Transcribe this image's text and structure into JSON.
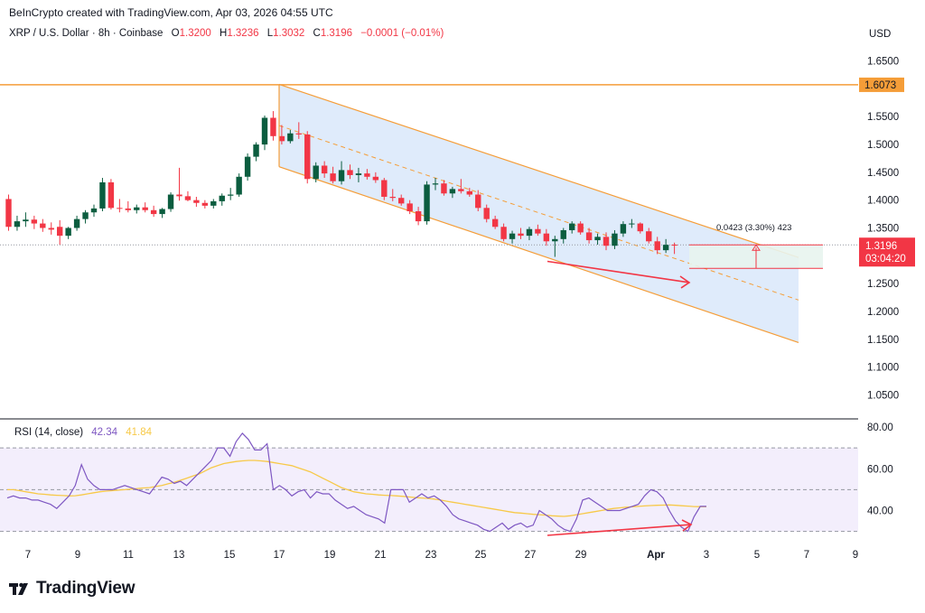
{
  "header": {
    "credit": "BeInCrypto created with TradingView.com, Apr 03, 2026 04:55 UTC"
  },
  "symbol": {
    "title": "XRP / U.S. Dollar · 8h · Coinbase",
    "open_label": "O",
    "open": "1.3200",
    "high_label": "H",
    "high": "1.3236",
    "low_label": "L",
    "low": "1.3032",
    "close_label": "C",
    "close": "1.3196",
    "change": "−0.0001 (−0.01%)"
  },
  "currency": "USD",
  "price_axis": {
    "ticks": [
      "1.6500",
      "1.6073",
      "1.5500",
      "1.5000",
      "1.4500",
      "1.4000",
      "1.3500",
      "1.3196",
      "03:04:20",
      "1.2500",
      "1.2000",
      "1.1500",
      "1.1000",
      "1.0500"
    ],
    "resistance_label": "1.6073",
    "last_price_label": "1.3196",
    "countdown_label": "03:04:20"
  },
  "measure": {
    "label": "0.0423 (3.30%) 423"
  },
  "rsi": {
    "title": "RSI (14, close)",
    "value": "42.34",
    "ma_value": "41.84",
    "axis_ticks": [
      "80.00",
      "60.00",
      "40.00"
    ],
    "upper_band": 70,
    "lower_band": 30,
    "mid_band": 50
  },
  "time_axis": {
    "ticks": [
      "7",
      "9",
      "11",
      "13",
      "15",
      "17",
      "19",
      "21",
      "23",
      "25",
      "27",
      "29",
      "Apr",
      "3",
      "5",
      "7",
      "9"
    ]
  },
  "brand": {
    "name": "TradingView"
  },
  "colors": {
    "bull": "#089981",
    "bull_dark": "#0b5d3f",
    "bear": "#f23645",
    "channel_fill": "#dbe9fb",
    "channel_line": "#f59d38",
    "resistance": "#f59d38",
    "rsi_line": "#7e57c2",
    "rsi_ma": "#f7c948",
    "rsi_band": "#f3eefc",
    "arrow": "#f23645"
  },
  "chart_data": [
    {
      "type": "candlestick",
      "title": "XRP / U.S. Dollar · 8h · Coinbase",
      "ylabel": "USD",
      "ylim": [
        1.02,
        1.68
      ],
      "x_tick_labels": [
        "7",
        "9",
        "11",
        "13",
        "15",
        "17",
        "19",
        "21",
        "23",
        "25",
        "27",
        "29",
        "Apr",
        "3",
        "5",
        "7",
        "9"
      ],
      "resistance_level": 1.6073,
      "last_price": 1.3196,
      "candles": [
        [
          1.402,
          1.41,
          1.345,
          1.352
        ],
        [
          1.352,
          1.372,
          1.345,
          1.362
        ],
        [
          1.362,
          1.378,
          1.352,
          1.365
        ],
        [
          1.365,
          1.372,
          1.348,
          1.358
        ],
        [
          1.358,
          1.366,
          1.343,
          1.35
        ],
        [
          1.35,
          1.36,
          1.338,
          1.347
        ],
        [
          1.352,
          1.364,
          1.32,
          1.336
        ],
        [
          1.336,
          1.352,
          1.33,
          1.35
        ],
        [
          1.35,
          1.372,
          1.345,
          1.366
        ],
        [
          1.366,
          1.382,
          1.358,
          1.378
        ],
        [
          1.378,
          1.392,
          1.37,
          1.385
        ],
        [
          1.385,
          1.44,
          1.38,
          1.432
        ],
        [
          1.432,
          1.438,
          1.383,
          1.386
        ],
        [
          1.386,
          1.402,
          1.378,
          1.385
        ],
        [
          1.385,
          1.398,
          1.378,
          1.382
        ],
        [
          1.382,
          1.392,
          1.376,
          1.387
        ],
        [
          1.387,
          1.396,
          1.378,
          1.382
        ],
        [
          1.382,
          1.39,
          1.37,
          1.375
        ],
        [
          1.375,
          1.386,
          1.368,
          1.384
        ],
        [
          1.384,
          1.414,
          1.379,
          1.41
        ],
        [
          1.41,
          1.458,
          1.399,
          1.407
        ],
        [
          1.407,
          1.416,
          1.398,
          1.4
        ],
        [
          1.4,
          1.406,
          1.388,
          1.395
        ],
        [
          1.395,
          1.4,
          1.385,
          1.39
        ],
        [
          1.39,
          1.402,
          1.385,
          1.398
        ],
        [
          1.398,
          1.412,
          1.39,
          1.408
        ],
        [
          1.408,
          1.422,
          1.4,
          1.41
        ],
        [
          1.41,
          1.448,
          1.406,
          1.442
        ],
        [
          1.442,
          1.484,
          1.435,
          1.478
        ],
        [
          1.478,
          1.504,
          1.47,
          1.5
        ],
        [
          1.5,
          1.552,
          1.49,
          1.548
        ],
        [
          1.548,
          1.56,
          1.507,
          1.515
        ],
        [
          1.515,
          1.535,
          1.5,
          1.506
        ],
        [
          1.506,
          1.526,
          1.502,
          1.52
        ],
        [
          1.52,
          1.54,
          1.51,
          1.518
        ],
        [
          1.518,
          1.524,
          1.43,
          1.438
        ],
        [
          1.438,
          1.468,
          1.432,
          1.462
        ],
        [
          1.462,
          1.47,
          1.44,
          1.448
        ],
        [
          1.448,
          1.46,
          1.43,
          1.434
        ],
        [
          1.434,
          1.47,
          1.428,
          1.454
        ],
        [
          1.454,
          1.464,
          1.438,
          1.445
        ],
        [
          1.445,
          1.458,
          1.432,
          1.448
        ],
        [
          1.448,
          1.456,
          1.437,
          1.442
        ],
        [
          1.442,
          1.45,
          1.431,
          1.436
        ],
        [
          1.436,
          1.44,
          1.4,
          1.406
        ],
        [
          1.406,
          1.42,
          1.398,
          1.404
        ],
        [
          1.404,
          1.41,
          1.39,
          1.394
        ],
        [
          1.394,
          1.4,
          1.375,
          1.38
        ],
        [
          1.38,
          1.388,
          1.355,
          1.362
        ],
        [
          1.362,
          1.434,
          1.356,
          1.428
        ],
        [
          1.428,
          1.44,
          1.418,
          1.43
        ],
        [
          1.43,
          1.436,
          1.408,
          1.412
        ],
        [
          1.412,
          1.424,
          1.404,
          1.42
        ],
        [
          1.42,
          1.438,
          1.412,
          1.416
        ],
        [
          1.416,
          1.422,
          1.406,
          1.41
        ],
        [
          1.41,
          1.418,
          1.38,
          1.386
        ],
        [
          1.386,
          1.392,
          1.36,
          1.366
        ],
        [
          1.366,
          1.372,
          1.348,
          1.352
        ],
        [
          1.352,
          1.358,
          1.326,
          1.33
        ],
        [
          1.33,
          1.345,
          1.322,
          1.34
        ],
        [
          1.34,
          1.35,
          1.33,
          1.336
        ],
        [
          1.336,
          1.352,
          1.328,
          1.348
        ],
        [
          1.348,
          1.356,
          1.336,
          1.34
        ],
        [
          1.34,
          1.348,
          1.318,
          1.326
        ],
        [
          1.326,
          1.336,
          1.298,
          1.33
        ],
        [
          1.33,
          1.35,
          1.322,
          1.346
        ],
        [
          1.346,
          1.362,
          1.34,
          1.358
        ],
        [
          1.358,
          1.362,
          1.338,
          1.342
        ],
        [
          1.342,
          1.35,
          1.322,
          1.328
        ],
        [
          1.328,
          1.34,
          1.32,
          1.334
        ],
        [
          1.334,
          1.342,
          1.31,
          1.318
        ],
        [
          1.318,
          1.346,
          1.312,
          1.34
        ],
        [
          1.34,
          1.362,
          1.334,
          1.357
        ],
        [
          1.357,
          1.366,
          1.35,
          1.358
        ],
        [
          1.358,
          1.36,
          1.34,
          1.344
        ],
        [
          1.344,
          1.35,
          1.322,
          1.326
        ],
        [
          1.326,
          1.334,
          1.303,
          1.31
        ],
        [
          1.31,
          1.33,
          1.305,
          1.3197
        ],
        [
          1.32,
          1.3236,
          1.3032,
          1.3196
        ]
      ],
      "channel": {
        "upper": [
          {
            "x": "17",
            "y": 1.608
          },
          {
            "x": "6",
            "y": 1.297
          }
        ],
        "lower": [
          {
            "x": "17",
            "y": 1.46
          },
          {
            "x": "6",
            "y": 1.144
          }
        ]
      },
      "measure": {
        "from": 1.2773,
        "to": 1.3196,
        "change": 0.0423,
        "percent": 3.3
      },
      "lower_low_arrow": {
        "from_x": "27",
        "to_x": "3",
        "from_y": 1.29,
        "to_y": 1.26
      }
    },
    {
      "type": "line",
      "title": "RSI (14, close)",
      "ylim": [
        25,
        83
      ],
      "bands": [
        30,
        50,
        70
      ],
      "series": [
        {
          "values": [
            46,
            47,
            46,
            46,
            45,
            45,
            44,
            43,
            41,
            44,
            47,
            52,
            62,
            55,
            52,
            50,
            50,
            50,
            51,
            52,
            51,
            50,
            49,
            48,
            52,
            56,
            55,
            53,
            54,
            52,
            55,
            58,
            61,
            64,
            70,
            70,
            66,
            73,
            77,
            74,
            69,
            69,
            72,
            50,
            52,
            50,
            47,
            49,
            50,
            46,
            49,
            48,
            48,
            45,
            43,
            41,
            42,
            40,
            38,
            37,
            36,
            34,
            50,
            50,
            50,
            44,
            46,
            48,
            46,
            47,
            45,
            42,
            38,
            36,
            35,
            34,
            33,
            31,
            30,
            32,
            34,
            31,
            33,
            34,
            32,
            33,
            40,
            38,
            36,
            33,
            31,
            30,
            36,
            45,
            46,
            44,
            42,
            40,
            40,
            40,
            41,
            42,
            43,
            47,
            50,
            49,
            46,
            40,
            35,
            32,
            30,
            37,
            42,
            42
          ]
        },
        {
          "values": [
            50,
            50,
            49.5,
            49,
            48.5,
            48,
            47.8,
            47.5,
            47.3,
            47.2,
            47,
            47.1,
            47.5,
            48,
            48.5,
            49,
            49.3,
            49.5,
            49.8,
            50,
            50.3,
            50.5,
            50.8,
            51,
            51.5,
            52,
            52.8,
            53.5,
            54.5,
            55.5,
            56.5,
            57.5,
            59,
            60.5,
            61.5,
            62.5,
            63,
            63.5,
            63.8,
            64,
            64,
            63.8,
            63.5,
            63,
            62.5,
            62,
            61.5,
            60.5,
            59.5,
            58.5,
            57,
            55.5,
            54,
            52.5,
            51,
            50,
            49,
            48.5,
            48,
            47.8,
            47.5,
            47.3,
            47.2,
            47,
            46.8,
            46.5,
            46.2,
            46,
            45.8,
            45.5,
            45,
            44.5,
            44,
            43.5,
            43,
            42.5,
            42,
            41.5,
            41,
            40.5,
            40,
            39.5,
            39,
            38.8,
            38.5,
            38.2,
            38,
            37.8,
            37.5,
            37.3,
            37.2,
            37.5,
            38,
            38.5,
            39,
            39.5,
            40,
            40.5,
            41,
            41.3,
            41.6,
            41.8,
            42,
            42.2,
            42.4,
            42.5,
            42.6,
            42.7,
            42.5,
            42.3,
            42.1,
            41.9,
            41.84,
            41.84
          ]
        }
      ]
    }
  ]
}
